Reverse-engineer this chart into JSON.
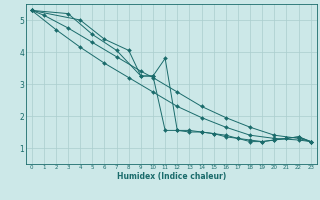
{
  "xlabel": "Humidex (Indice chaleur)",
  "bg_color": "#cce8e8",
  "grid_color": "#aacece",
  "line_color": "#1a6b6b",
  "xlim": [
    -0.5,
    23.5
  ],
  "ylim": [
    0.5,
    5.5
  ],
  "yticks": [
    1,
    2,
    3,
    4,
    5
  ],
  "xticks": [
    0,
    1,
    2,
    3,
    4,
    5,
    6,
    7,
    8,
    9,
    10,
    11,
    12,
    13,
    14,
    15,
    16,
    17,
    18,
    19,
    20,
    21,
    22,
    23
  ],
  "series": [
    {
      "x": [
        0,
        1,
        3,
        5,
        7,
        9,
        10,
        12,
        14,
        16,
        18,
        20,
        22,
        23
      ],
      "y": [
        5.3,
        5.15,
        4.75,
        4.3,
        3.85,
        3.4,
        3.2,
        2.75,
        2.3,
        1.95,
        1.65,
        1.4,
        1.3,
        1.2
      ]
    },
    {
      "x": [
        0,
        2,
        4,
        6,
        8,
        10,
        12,
        14,
        16,
        18,
        20,
        22,
        23
      ],
      "y": [
        5.3,
        4.7,
        4.15,
        3.65,
        3.2,
        2.75,
        2.3,
        1.95,
        1.65,
        1.4,
        1.3,
        1.25,
        1.2
      ]
    },
    {
      "x": [
        0,
        3,
        5,
        7,
        9,
        10,
        11,
        12,
        13,
        14,
        15,
        16,
        17,
        18,
        19,
        20,
        21,
        22,
        23
      ],
      "y": [
        5.3,
        5.2,
        4.55,
        4.05,
        3.25,
        3.25,
        3.8,
        1.55,
        1.55,
        1.5,
        1.45,
        1.4,
        1.3,
        1.25,
        1.2,
        1.25,
        1.3,
        1.35,
        1.2
      ]
    },
    {
      "x": [
        0,
        4,
        6,
        8,
        9,
        10,
        11,
        12,
        13,
        14,
        15,
        16,
        17,
        18,
        19,
        20,
        21,
        22,
        23
      ],
      "y": [
        5.3,
        5.0,
        4.4,
        4.05,
        3.25,
        3.25,
        1.55,
        1.55,
        1.5,
        1.5,
        1.45,
        1.35,
        1.3,
        1.2,
        1.2,
        1.25,
        1.3,
        1.35,
        1.2
      ]
    }
  ]
}
